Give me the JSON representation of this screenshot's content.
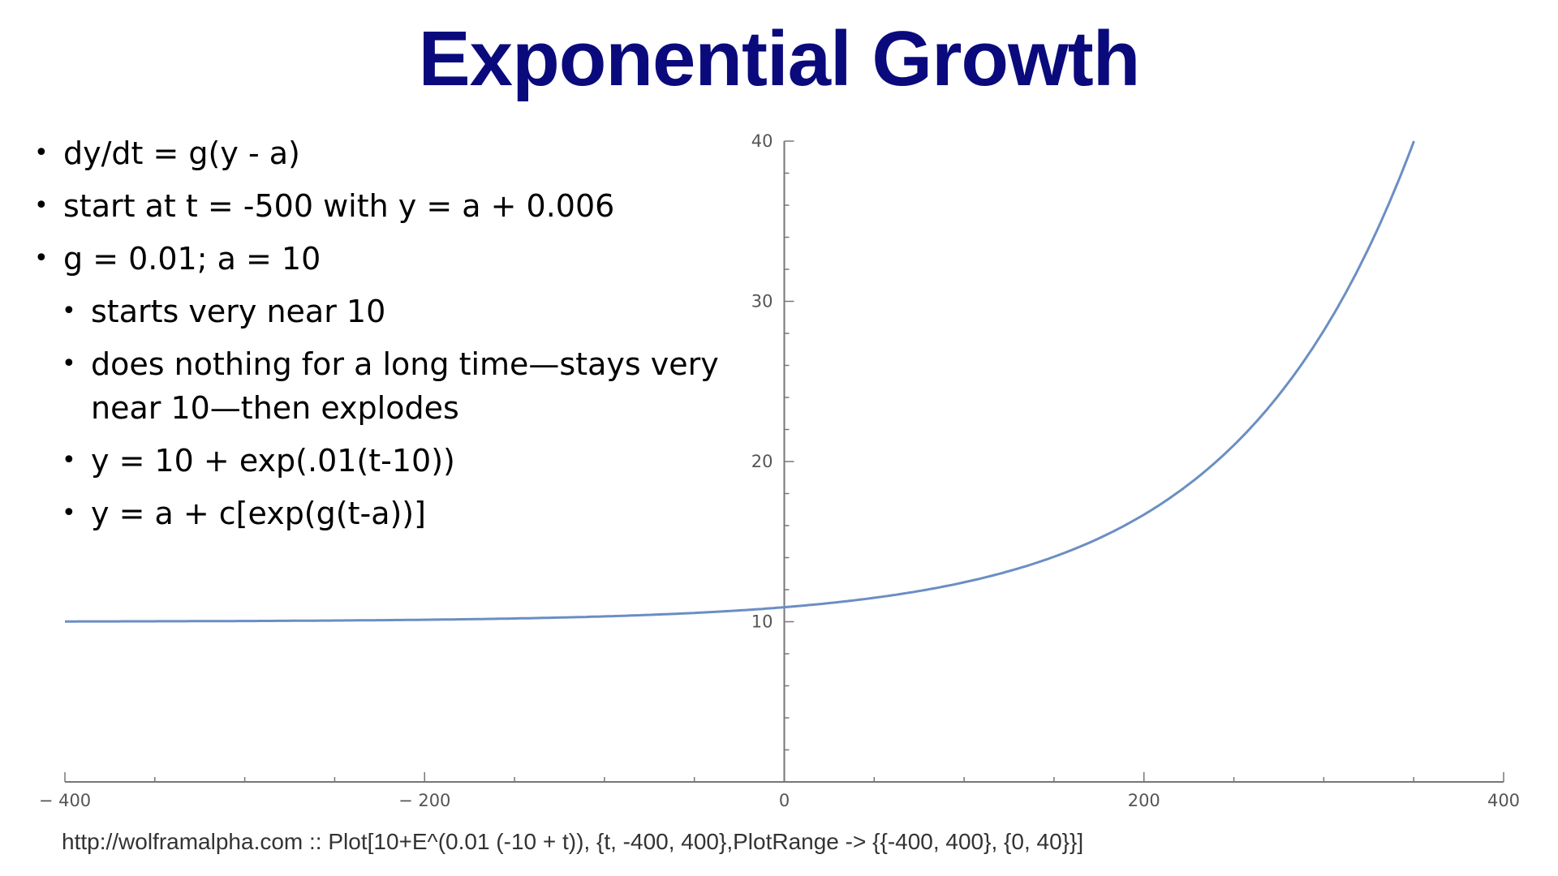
{
  "title": "Exponential Growth",
  "bullets": [
    {
      "level": 1,
      "text": "dy/dt = g(y - a)"
    },
    {
      "level": 1,
      "text": "start at t = -500 with y = a + 0.006"
    },
    {
      "level": 1,
      "text": "g = 0.01; a = 10"
    },
    {
      "level": 2,
      "text": "starts very near 10"
    },
    {
      "level": 2,
      "text": "does nothing for a long time—stays very near 10—then explodes"
    },
    {
      "level": 2,
      "text": "y = 10 + exp(.01(t-10))"
    },
    {
      "level": 2,
      "text": "y = a + c[exp(g(t-a))]"
    }
  ],
  "caption": "http://wolframalpha.com :: Plot[10+E^(0.01 (-10 + t)), {t, -400, 400},PlotRange -> {{-400, 400}, {0, 40}}]",
  "chart_data": {
    "type": "line",
    "function": "10+E^(0.01 (-10 + t))",
    "xlim": [
      -400,
      400
    ],
    "ylim": [
      0,
      40
    ],
    "x_ticks": [
      -400,
      -200,
      0,
      200,
      400
    ],
    "x_tick_labels": [
      "− 400",
      "− 200",
      "0",
      "200",
      "400"
    ],
    "y_ticks": [
      10,
      20,
      30,
      40
    ],
    "y_tick_labels": [
      "10",
      "20",
      "30",
      "40"
    ],
    "series": [
      {
        "x": [
          -400,
          -350,
          -300,
          -250,
          -200,
          -150,
          -100,
          -50,
          0,
          50,
          100,
          150,
          200,
          250,
          300,
          350
        ],
        "y": [
          10.02,
          10.03,
          10.05,
          10.07,
          10.12,
          10.2,
          10.33,
          10.55,
          10.9,
          11.49,
          12.46,
          14.06,
          16.69,
          21.02,
          28.17,
          39.96
        ],
        "color": "#6b8ec3"
      }
    ]
  }
}
